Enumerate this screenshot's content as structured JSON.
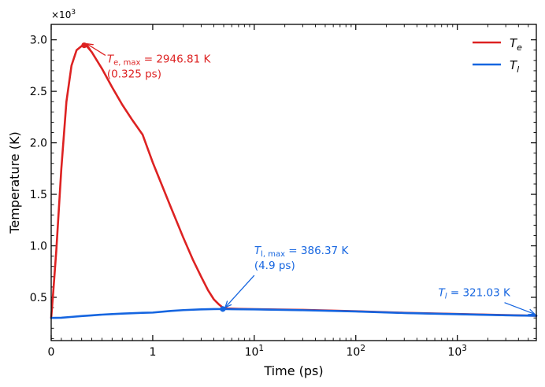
{
  "chart_data": {
    "type": "line",
    "xlabel": "Time (ps)",
    "ylabel": "Temperature (K)",
    "y_multiplier_label": "×10³",
    "xscale": "symlog",
    "xlinthresh": 1,
    "xlim": [
      0,
      6000
    ],
    "ylim": [
      0.08,
      3.15
    ],
    "x_ticks": [
      {
        "value": 0,
        "label": "0"
      },
      {
        "value": 1,
        "label": "1"
      },
      {
        "value": 10,
        "label": "10¹"
      },
      {
        "value": 100,
        "label": "10²"
      },
      {
        "value": 1000,
        "label": "10³"
      }
    ],
    "y_ticks": [
      {
        "value": 0.5,
        "label": "0.5"
      },
      {
        "value": 1.0,
        "label": "1.0"
      },
      {
        "value": 1.5,
        "label": "1.5"
      },
      {
        "value": 2.0,
        "label": "2.0"
      },
      {
        "value": 2.5,
        "label": "2.5"
      },
      {
        "value": 3.0,
        "label": "3.0"
      }
    ],
    "legend_position": "top-right",
    "series": [
      {
        "name": "Te",
        "legend_main": "T",
        "legend_sub": "e",
        "color": "#dd2222",
        "points": [
          [
            0,
            0.3
          ],
          [
            0.02,
            0.55
          ],
          [
            0.05,
            0.95
          ],
          [
            0.1,
            1.75
          ],
          [
            0.15,
            2.4
          ],
          [
            0.2,
            2.75
          ],
          [
            0.25,
            2.9
          ],
          [
            0.3,
            2.94
          ],
          [
            0.325,
            2.9468
          ],
          [
            0.35,
            2.94
          ],
          [
            0.4,
            2.88
          ],
          [
            0.5,
            2.72
          ],
          [
            0.6,
            2.54
          ],
          [
            0.7,
            2.37
          ],
          [
            0.8,
            2.22
          ],
          [
            0.9,
            2.08
          ],
          [
            1.0,
            1.81
          ],
          [
            1.5,
            1.38
          ],
          [
            2.0,
            1.08
          ],
          [
            2.5,
            0.86
          ],
          [
            3.0,
            0.7
          ],
          [
            3.5,
            0.57
          ],
          [
            4.0,
            0.48
          ],
          [
            4.5,
            0.43
          ],
          [
            4.9,
            0.4
          ],
          [
            5.5,
            0.392
          ],
          [
            7,
            0.388
          ],
          [
            10,
            0.385
          ],
          [
            30,
            0.378
          ],
          [
            100,
            0.365
          ],
          [
            300,
            0.35
          ],
          [
            1000,
            0.338
          ],
          [
            3000,
            0.328
          ],
          [
            6000,
            0.321
          ]
        ]
      },
      {
        "name": "Tl",
        "legend_main": "T",
        "legend_sub": "l",
        "color": "#1565e0",
        "points": [
          [
            0,
            0.3
          ],
          [
            0.1,
            0.302
          ],
          [
            0.2,
            0.31
          ],
          [
            0.3,
            0.318
          ],
          [
            0.4,
            0.325
          ],
          [
            0.5,
            0.332
          ],
          [
            0.6,
            0.337
          ],
          [
            0.7,
            0.342
          ],
          [
            0.8,
            0.346
          ],
          [
            0.9,
            0.35
          ],
          [
            1.0,
            0.352
          ],
          [
            1.5,
            0.368
          ],
          [
            2,
            0.376
          ],
          [
            3,
            0.383
          ],
          [
            4,
            0.386
          ],
          [
            4.9,
            0.38637
          ],
          [
            6,
            0.385
          ],
          [
            10,
            0.383
          ],
          [
            30,
            0.375
          ],
          [
            100,
            0.363
          ],
          [
            300,
            0.348
          ],
          [
            1000,
            0.336
          ],
          [
            3000,
            0.326
          ],
          [
            6000,
            0.32103
          ]
        ]
      }
    ],
    "markers": [
      {
        "series": "Te",
        "x": 0.325,
        "y": 2.94681
      },
      {
        "series": "Tl",
        "x": 4.9,
        "y": 0.38637
      }
    ],
    "annotations": [
      {
        "id": "te-max",
        "color": "#dd2222",
        "line1_main": "T",
        "line1_sub": "e, max",
        "line1_rest": " = 2946.81 K",
        "line2": "(0.325 ps)",
        "target": {
          "x": 0.325,
          "y": 2.94681
        },
        "text_anchor": {
          "x": 0.55,
          "y": 2.78
        }
      },
      {
        "id": "tl-max",
        "color": "#1565e0",
        "line1_main": "T",
        "line1_sub": "l, max",
        "line1_rest": " = 386.37 K",
        "line2": "(4.9 ps)",
        "target": {
          "x": 4.9,
          "y": 0.38637
        },
        "text_anchor": {
          "x": 10,
          "y": 0.92
        }
      },
      {
        "id": "tl-final",
        "color": "#1565e0",
        "line1_main": "T",
        "line1_sub": "l",
        "line1_rest": " = 321.03 K",
        "line2": "",
        "target": {
          "x": 6000,
          "y": 0.32103
        },
        "text_anchor": {
          "x": 650,
          "y": 0.51
        }
      }
    ]
  }
}
